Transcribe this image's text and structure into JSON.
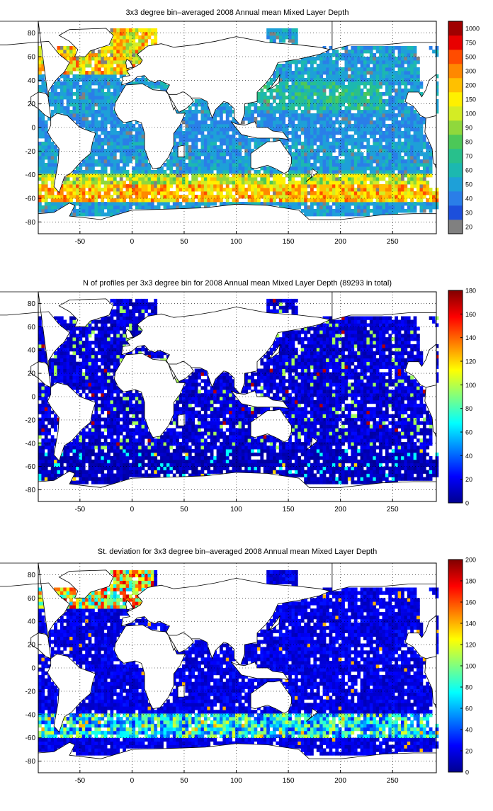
{
  "panels": [
    {
      "title": "3x3 degree bin–averaged 2008 Annual mean Mixed Layer Depth",
      "colorbar": {
        "type": "categorical",
        "labels": [
          "20",
          "30",
          "40",
          "50",
          "60",
          "70",
          "80",
          "90",
          "100",
          "150",
          "200",
          "300",
          "500",
          "750",
          "1000"
        ],
        "colors": [
          "#808080",
          "#1c4fdc",
          "#2a7ee8",
          "#1ea0d8",
          "#1cb8b0",
          "#28c08c",
          "#4cc858",
          "#90d83c",
          "#d4ec24",
          "#fff000",
          "#ffc000",
          "#ff8800",
          "#ff4c00",
          "#e80000",
          "#a00000"
        ]
      }
    },
    {
      "title": "N of profiles per 3x3 degree bin for 2008 Annual mean Mixed Layer Depth  (89293 in total)",
      "colorbar": {
        "type": "continuous",
        "min": 0,
        "max": 180,
        "ticks": [
          "0",
          "20",
          "40",
          "60",
          "80",
          "100",
          "120",
          "140",
          "160",
          "180"
        ]
      }
    },
    {
      "title": "St. deviation for 3x3 degree bin–averaged 2008 Annual mean Mixed Layer Depth",
      "colorbar": {
        "type": "continuous",
        "min": 0,
        "max": 200,
        "ticks": [
          "0",
          "20",
          "40",
          "60",
          "80",
          "100",
          "120",
          "140",
          "160",
          "180",
          "200"
        ]
      }
    }
  ],
  "axes": {
    "xlim": [
      -90,
      292
    ],
    "ylim": [
      -90,
      90
    ],
    "xticks": [
      "-50",
      "0",
      "50",
      "100",
      "150",
      "200",
      "250"
    ],
    "yticks": [
      "80",
      "60",
      "40",
      "20",
      "0",
      "-20",
      "-40",
      "-60",
      "-80"
    ],
    "grid": "dotted"
  }
}
